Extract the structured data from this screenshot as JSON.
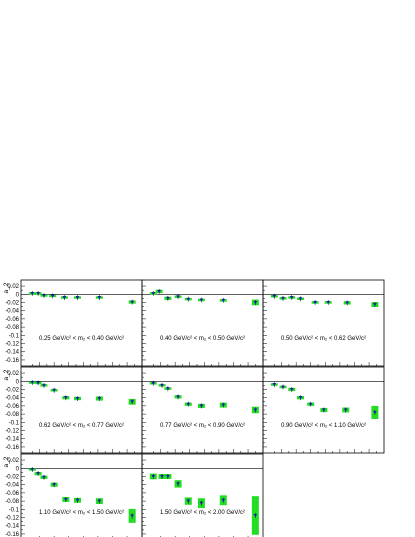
{
  "chart_data": {
    "type": "scatter",
    "title": "",
    "ylabel": "a_2",
    "xlabel": "m_1 [GeV/c^2]",
    "ylim": [
      -0.165,
      0.025
    ],
    "xlim": [
      0.2,
      1.75
    ],
    "x_ticks": [
      "0.4",
      "0.6",
      "0.8",
      "1",
      "1.2",
      "1.4",
      "1.6"
    ],
    "y_ticks": [
      "0.02",
      "0",
      "-0.02",
      "-0.04",
      "-0.06",
      "-0.08",
      "-0.1",
      "-0.12",
      "-0.14",
      "-0.16"
    ],
    "colors": {
      "marker": "#1a1ab0",
      "error_box": "#22dd22",
      "zero_line": "#000000"
    },
    "panels": [
      {
        "label": "0.25 GeV/c² < m₂ < 0.40 GeV/c²",
        "points": [
          {
            "x": 0.3,
            "y": 0.002,
            "e": 0.003
          },
          {
            "x": 0.38,
            "y": 0.002,
            "e": 0.003
          },
          {
            "x": 0.46,
            "y": -0.003,
            "e": 0.003
          },
          {
            "x": 0.58,
            "y": -0.004,
            "e": 0.003
          },
          {
            "x": 0.74,
            "y": -0.008,
            "e": 0.003
          },
          {
            "x": 0.92,
            "y": -0.008,
            "e": 0.003
          },
          {
            "x": 1.22,
            "y": -0.008,
            "e": 0.003
          },
          {
            "x": 1.67,
            "y": -0.019,
            "e": 0.004
          }
        ]
      },
      {
        "label": "0.40 GeV/c² < m₂ < 0.50 GeV/c²",
        "points": [
          {
            "x": 0.3,
            "y": 0.002,
            "e": 0.003
          },
          {
            "x": 0.38,
            "y": 0.007,
            "e": 0.004
          },
          {
            "x": 0.5,
            "y": -0.01,
            "e": 0.004
          },
          {
            "x": 0.64,
            "y": -0.006,
            "e": 0.003
          },
          {
            "x": 0.78,
            "y": -0.012,
            "e": 0.003
          },
          {
            "x": 0.96,
            "y": -0.014,
            "e": 0.003
          },
          {
            "x": 1.26,
            "y": -0.015,
            "e": 0.003
          },
          {
            "x": 1.7,
            "y": -0.02,
            "e": 0.007
          }
        ]
      },
      {
        "label": "0.50 GeV/c² < m₂ < 0.62 GeV/c²",
        "points": [
          {
            "x": 0.3,
            "y": -0.005,
            "e": 0.003
          },
          {
            "x": 0.42,
            "y": -0.01,
            "e": 0.003
          },
          {
            "x": 0.54,
            "y": -0.008,
            "e": 0.003
          },
          {
            "x": 0.66,
            "y": -0.011,
            "e": 0.003
          },
          {
            "x": 0.86,
            "y": -0.02,
            "e": 0.003
          },
          {
            "x": 1.04,
            "y": -0.02,
            "e": 0.003
          },
          {
            "x": 1.3,
            "y": -0.021,
            "e": 0.004
          },
          {
            "x": 1.68,
            "y": -0.025,
            "e": 0.006
          }
        ]
      },
      {
        "label": "0.62 GeV/c² < m₂ < 0.77 GeV/c²",
        "points": [
          {
            "x": 0.3,
            "y": -0.003,
            "e": 0.003
          },
          {
            "x": 0.38,
            "y": -0.004,
            "e": 0.003
          },
          {
            "x": 0.46,
            "y": -0.01,
            "e": 0.003
          },
          {
            "x": 0.6,
            "y": -0.022,
            "e": 0.003
          },
          {
            "x": 0.76,
            "y": -0.04,
            "e": 0.004
          },
          {
            "x": 0.92,
            "y": -0.042,
            "e": 0.004
          },
          {
            "x": 1.22,
            "y": -0.042,
            "e": 0.005
          },
          {
            "x": 1.67,
            "y": -0.05,
            "e": 0.007
          }
        ]
      },
      {
        "label": "0.77 GeV/c² < m₂ < 0.90 GeV/c²",
        "points": [
          {
            "x": 0.3,
            "y": -0.005,
            "e": 0.003
          },
          {
            "x": 0.42,
            "y": -0.01,
            "e": 0.003
          },
          {
            "x": 0.5,
            "y": -0.018,
            "e": 0.003
          },
          {
            "x": 0.64,
            "y": -0.038,
            "e": 0.004
          },
          {
            "x": 0.78,
            "y": -0.056,
            "e": 0.004
          },
          {
            "x": 0.96,
            "y": -0.06,
            "e": 0.005
          },
          {
            "x": 1.26,
            "y": -0.058,
            "e": 0.006
          },
          {
            "x": 1.7,
            "y": -0.07,
            "e": 0.008
          }
        ]
      },
      {
        "label": "0.90 GeV/c² < m₂ < 1.10 GeV/c²",
        "points": [
          {
            "x": 0.3,
            "y": -0.008,
            "e": 0.003
          },
          {
            "x": 0.42,
            "y": -0.014,
            "e": 0.003
          },
          {
            "x": 0.54,
            "y": -0.02,
            "e": 0.004
          },
          {
            "x": 0.66,
            "y": -0.04,
            "e": 0.004
          },
          {
            "x": 0.8,
            "y": -0.056,
            "e": 0.004
          },
          {
            "x": 0.98,
            "y": -0.07,
            "e": 0.005
          },
          {
            "x": 1.28,
            "y": -0.07,
            "e": 0.006
          },
          {
            "x": 1.68,
            "y": -0.076,
            "e": 0.016
          }
        ]
      },
      {
        "label": "1.10 GeV/c² < m₂ < 1.50 GeV/c²",
        "points": [
          {
            "x": 0.3,
            "y": -0.003,
            "e": 0.003
          },
          {
            "x": 0.38,
            "y": -0.013,
            "e": 0.004
          },
          {
            "x": 0.46,
            "y": -0.022,
            "e": 0.004
          },
          {
            "x": 0.6,
            "y": -0.04,
            "e": 0.005
          },
          {
            "x": 0.76,
            "y": -0.076,
            "e": 0.006
          },
          {
            "x": 0.92,
            "y": -0.078,
            "e": 0.006
          },
          {
            "x": 1.22,
            "y": -0.08,
            "e": 0.007
          },
          {
            "x": 1.67,
            "y": -0.116,
            "e": 0.017
          }
        ]
      },
      {
        "label": "1.50 GeV/c² < m₂ < 2.00 GeV/c²",
        "points": [
          {
            "x": 0.3,
            "y": -0.02,
            "e": 0.007
          },
          {
            "x": 0.42,
            "y": -0.02,
            "e": 0.006
          },
          {
            "x": 0.5,
            "y": -0.02,
            "e": 0.006
          },
          {
            "x": 0.64,
            "y": -0.038,
            "e": 0.009
          },
          {
            "x": 0.78,
            "y": -0.08,
            "e": 0.009
          },
          {
            "x": 0.96,
            "y": -0.085,
            "e": 0.012
          },
          {
            "x": 1.26,
            "y": -0.078,
            "e": 0.012
          },
          {
            "x": 1.7,
            "y": -0.115,
            "e": 0.047
          }
        ]
      }
    ]
  }
}
